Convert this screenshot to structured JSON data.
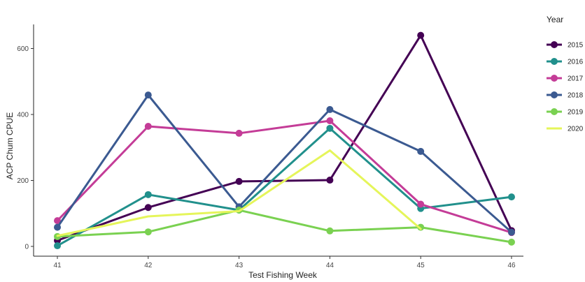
{
  "chart_data": {
    "type": "line",
    "title": "",
    "xlabel": "Test Fishing Week",
    "ylabel": "ACP Chum CPUE",
    "x": [
      41,
      42,
      43,
      44,
      45,
      46
    ],
    "xlim": [
      41,
      46
    ],
    "ylim": [
      0,
      650
    ],
    "yticks": [
      0,
      200,
      400,
      600
    ],
    "grid": false,
    "legend": {
      "title": "Year",
      "position": "right"
    },
    "series": [
      {
        "name": "2015",
        "color": "#440154",
        "markers": true,
        "values": [
          18,
          118,
          197,
          201,
          640,
          48
        ]
      },
      {
        "name": "2016",
        "color": "#21908c",
        "markers": true,
        "values": [
          2,
          157,
          110,
          358,
          115,
          150
        ]
      },
      {
        "name": "2017",
        "color": "#c43c97",
        "markers": true,
        "values": [
          78,
          364,
          343,
          381,
          128,
          42
        ]
      },
      {
        "name": "2018",
        "color": "#3b5a91",
        "markers": true,
        "values": [
          58,
          459,
          120,
          415,
          288,
          43
        ]
      },
      {
        "name": "2019",
        "color": "#7ad151",
        "markers": true,
        "values": [
          30,
          44,
          110,
          47,
          58,
          13
        ]
      },
      {
        "name": "2020",
        "color": "#e5f55a",
        "markers": false,
        "values": [
          32,
          91,
          107,
          291,
          53,
          null
        ]
      }
    ]
  }
}
